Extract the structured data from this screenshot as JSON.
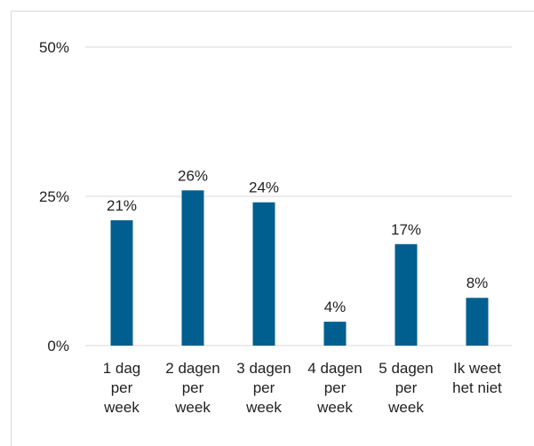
{
  "chart_data": {
    "type": "bar",
    "categories": [
      [
        "1 dag",
        "per",
        "week"
      ],
      [
        "2 dagen",
        "per",
        "week"
      ],
      [
        "3 dagen",
        "per",
        "week"
      ],
      [
        "4 dagen",
        "per",
        "week"
      ],
      [
        "5 dagen",
        "per",
        "week"
      ],
      [
        "Ik weet",
        "het niet"
      ]
    ],
    "values": [
      21,
      26,
      24,
      4,
      17,
      8
    ],
    "data_labels": [
      "21%",
      "26%",
      "24%",
      "4%",
      "17%",
      "8%"
    ],
    "ylim": [
      0,
      50
    ],
    "yticks": [
      0,
      25,
      50
    ],
    "ytick_labels": [
      "0%",
      "25%",
      "50%"
    ],
    "title": "",
    "xlabel": "",
    "ylabel": "",
    "grid": true,
    "bar_color": "#005f8f",
    "grid_color": "#d9d9d9"
  }
}
